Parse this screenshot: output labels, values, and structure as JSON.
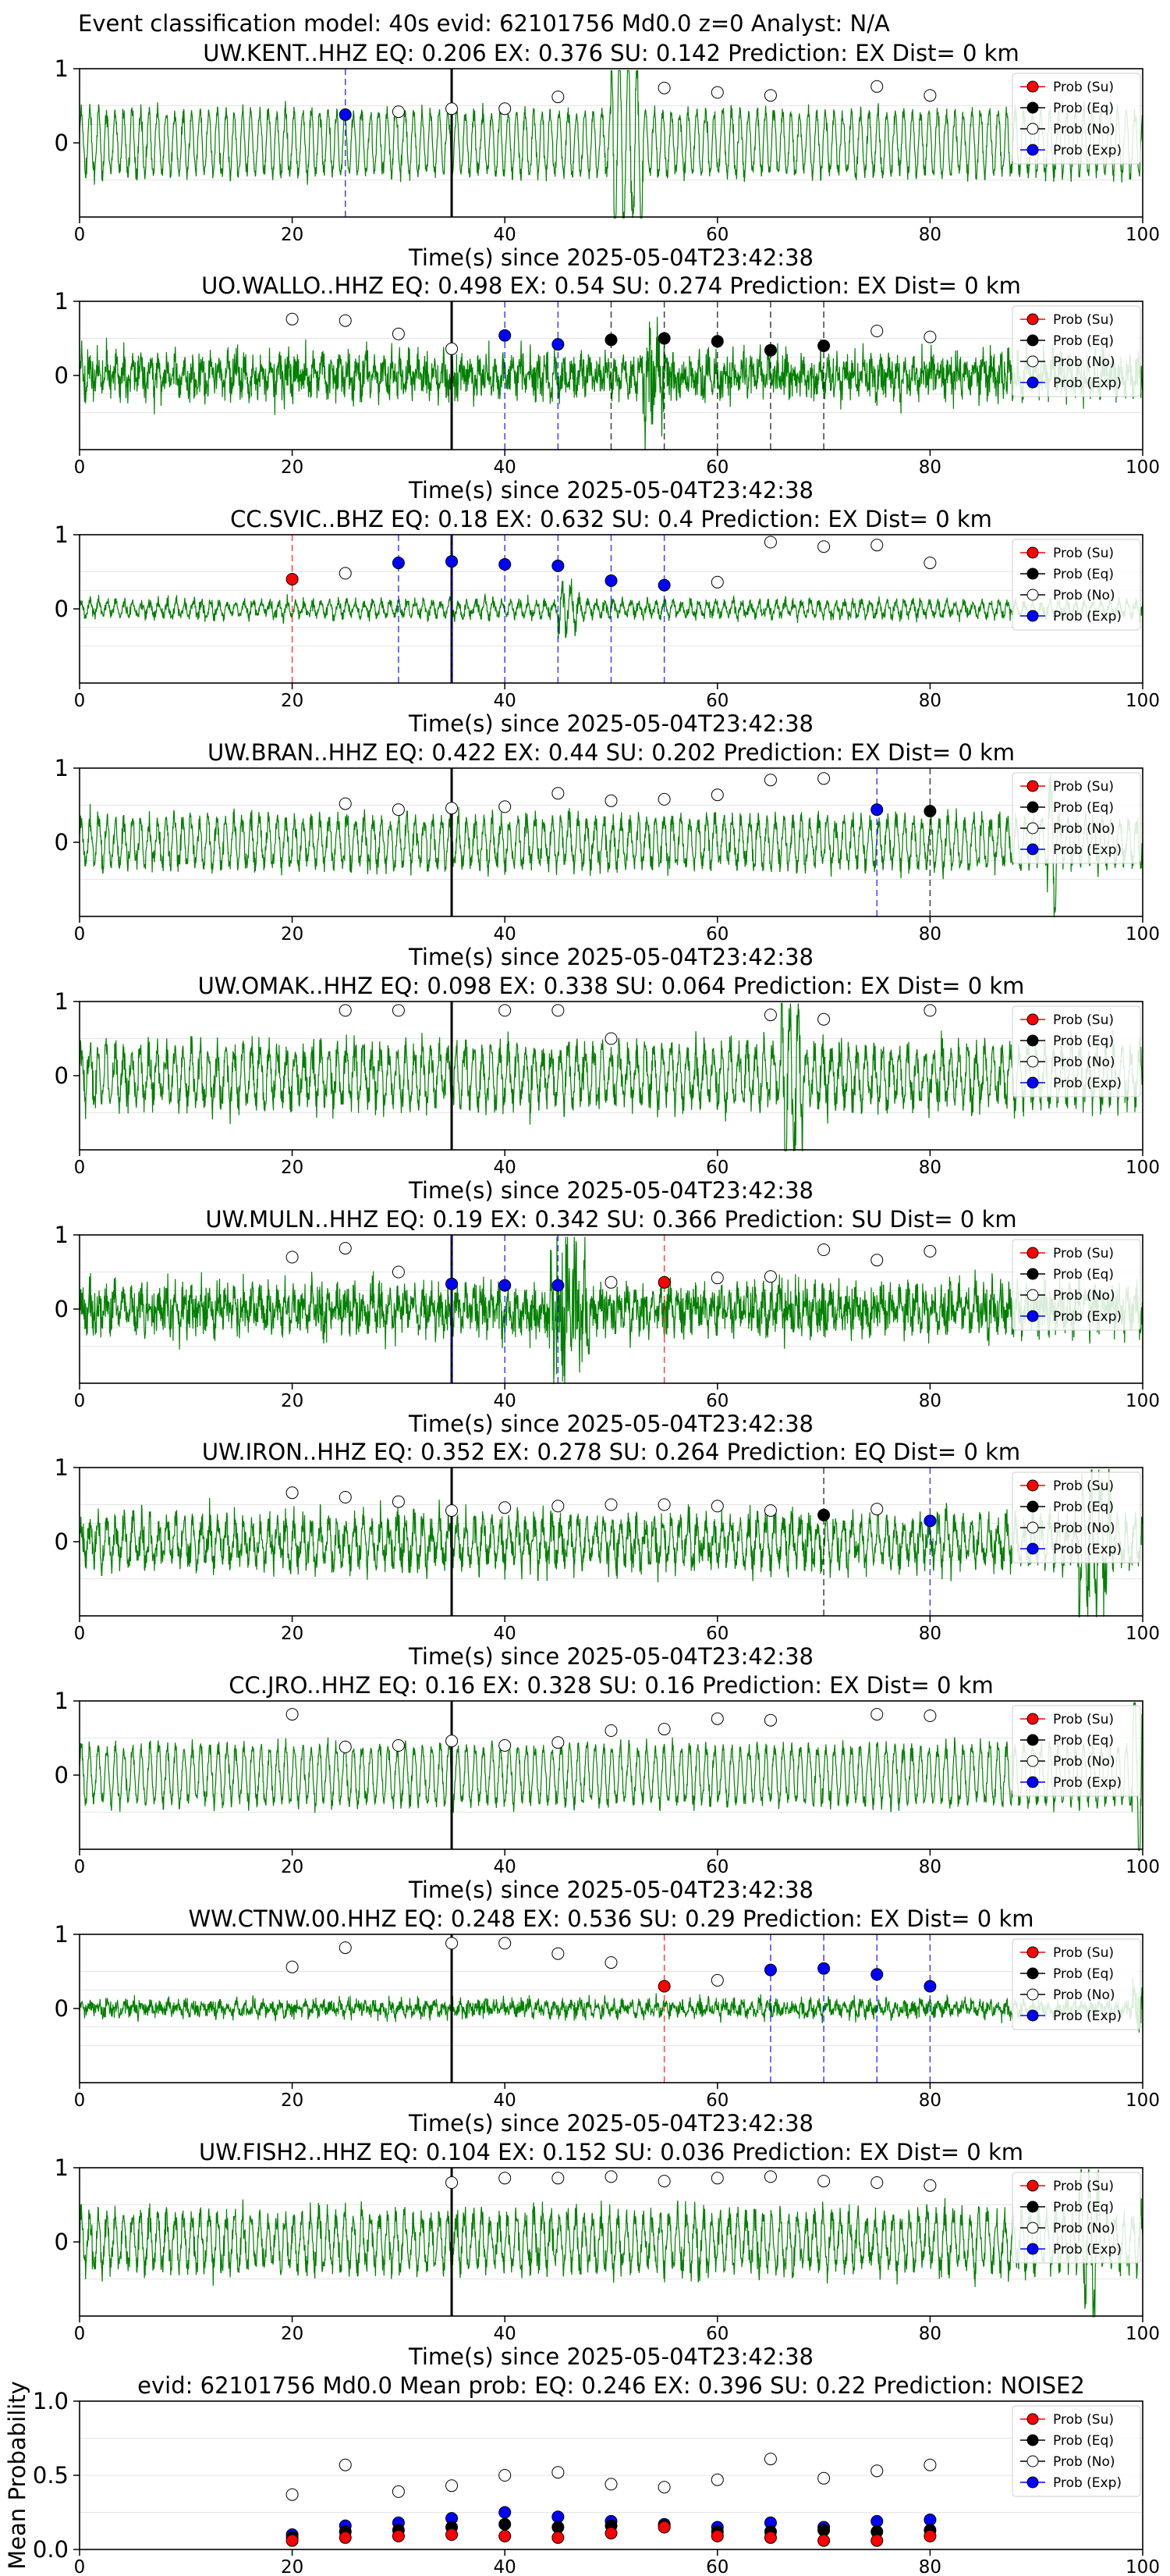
{
  "suptitle": "Event classification model: 40s evid: 62101756 Md0.0 z=0 Analyst: N/A",
  "xlabel": "Time(s) since 2025-05-04T23:42:38",
  "legend": [
    "Prob (Su)",
    "Prob (Eq)",
    "Prob (No)",
    "Prob (Exp)"
  ],
  "colors": {
    "su": "#ff0000",
    "eq": "#000000",
    "no": "#ffffff",
    "exp": "#0000ff",
    "waveform": "#008000",
    "onset": "#000000"
  },
  "chart_data": [
    {
      "type": "line",
      "title": "UW.KENT..HHZ   EQ: 0.206  EX: 0.376  SU: 0.142   Prediction: EX    Dist= 0 km",
      "xlim": [
        0,
        100
      ],
      "xticks": [
        0,
        20,
        40,
        60,
        80,
        100
      ],
      "ylim": [
        -1,
        1
      ],
      "yticks": [
        1,
        0
      ],
      "onset": 35,
      "points": [
        {
          "t": 20,
          "p": null
        },
        {
          "t": 25,
          "p": 0.38,
          "c": "exp"
        },
        {
          "t": 30,
          "p": 0.42,
          "c": "no"
        },
        {
          "t": 35,
          "p": 0.46,
          "c": "no"
        },
        {
          "t": 40,
          "p": 0.46,
          "c": "no"
        },
        {
          "t": 45,
          "p": 0.62,
          "c": "no"
        },
        {
          "t": 50,
          "p": null
        },
        {
          "t": 55,
          "p": 0.74,
          "c": "no"
        },
        {
          "t": 60,
          "p": 0.68,
          "c": "no"
        },
        {
          "t": 65,
          "p": 0.64,
          "c": "no"
        },
        {
          "t": 70,
          "p": null
        },
        {
          "t": 75,
          "p": 0.76,
          "c": "no"
        },
        {
          "t": 80,
          "p": 0.64,
          "c": "no"
        }
      ],
      "amp": 0.55,
      "noise": 0.15,
      "burst": [
        50,
        53
      ]
    },
    {
      "type": "line",
      "title": "UO.WALLO..HHZ   EQ: 0.498  EX: 0.54  SU: 0.274   Prediction: EX    Dist= 0 km",
      "xlim": [
        0,
        100
      ],
      "xticks": [
        0,
        20,
        40,
        60,
        80,
        100
      ],
      "ylim": [
        -1,
        1
      ],
      "yticks": [
        1,
        0
      ],
      "onset": 35,
      "points": [
        {
          "t": 20,
          "p": 0.76,
          "c": "no"
        },
        {
          "t": 25,
          "p": 0.74,
          "c": "no"
        },
        {
          "t": 30,
          "p": 0.56,
          "c": "no"
        },
        {
          "t": 35,
          "p": 0.36,
          "c": "no"
        },
        {
          "t": 40,
          "p": 0.54,
          "c": "exp"
        },
        {
          "t": 45,
          "p": 0.42,
          "c": "exp"
        },
        {
          "t": 50,
          "p": 0.48,
          "c": "eq"
        },
        {
          "t": 55,
          "p": 0.5,
          "c": "eq"
        },
        {
          "t": 60,
          "p": 0.46,
          "c": "eq"
        },
        {
          "t": 65,
          "p": 0.34,
          "c": "eq"
        },
        {
          "t": 70,
          "p": 0.4,
          "c": "eq"
        },
        {
          "t": 75,
          "p": 0.6,
          "c": "no"
        },
        {
          "t": 80,
          "p": 0.52,
          "c": "no"
        }
      ],
      "amp": 0.18,
      "noise": 0.35,
      "burst": [
        53,
        55
      ]
    },
    {
      "type": "line",
      "title": "CC.SVIC..BHZ   EQ: 0.18  EX: 0.632  SU: 0.4   Prediction: EX    Dist= 0 km",
      "xlim": [
        0,
        100
      ],
      "xticks": [
        0,
        20,
        40,
        60,
        80,
        100
      ],
      "ylim": [
        -1,
        1
      ],
      "yticks": [
        1,
        0
      ],
      "onset": 35,
      "points": [
        {
          "t": 20,
          "p": 0.4,
          "c": "su"
        },
        {
          "t": 25,
          "p": 0.48,
          "c": "no"
        },
        {
          "t": 30,
          "p": 0.62,
          "c": "exp"
        },
        {
          "t": 35,
          "p": 0.64,
          "c": "exp"
        },
        {
          "t": 40,
          "p": 0.6,
          "c": "exp"
        },
        {
          "t": 45,
          "p": 0.58,
          "c": "exp"
        },
        {
          "t": 50,
          "p": 0.38,
          "c": "exp"
        },
        {
          "t": 55,
          "p": 0.32,
          "c": "exp"
        },
        {
          "t": 60,
          "p": 0.36,
          "c": "no"
        },
        {
          "t": 65,
          "p": 0.9,
          "c": "no"
        },
        {
          "t": 70,
          "p": 0.84,
          "c": "no"
        },
        {
          "t": 75,
          "p": 0.86,
          "c": "no"
        },
        {
          "t": 80,
          "p": 0.62,
          "c": "no"
        }
      ],
      "amp": 0.12,
      "noise": 0.1,
      "burst": [
        45,
        47
      ]
    },
    {
      "type": "line",
      "title": "UW.BRAN..HHZ   EQ: 0.422  EX: 0.44  SU: 0.202   Prediction: EX    Dist= 0 km",
      "xlim": [
        0,
        100
      ],
      "xticks": [
        0,
        20,
        40,
        60,
        80,
        100
      ],
      "ylim": [
        -1,
        1
      ],
      "yticks": [
        1,
        0
      ],
      "onset": 35,
      "points": [
        {
          "t": 20,
          "p": null
        },
        {
          "t": 25,
          "p": 0.52,
          "c": "no"
        },
        {
          "t": 30,
          "p": 0.44,
          "c": "no"
        },
        {
          "t": 35,
          "p": 0.46,
          "c": "no"
        },
        {
          "t": 40,
          "p": 0.48,
          "c": "no"
        },
        {
          "t": 45,
          "p": 0.66,
          "c": "no"
        },
        {
          "t": 50,
          "p": 0.56,
          "c": "no"
        },
        {
          "t": 55,
          "p": 0.58,
          "c": "no"
        },
        {
          "t": 60,
          "p": 0.64,
          "c": "no"
        },
        {
          "t": 65,
          "p": 0.84,
          "c": "no"
        },
        {
          "t": 70,
          "p": 0.86,
          "c": "no"
        },
        {
          "t": 75,
          "p": 0.44,
          "c": "exp"
        },
        {
          "t": 80,
          "p": 0.42,
          "c": "eq"
        }
      ],
      "amp": 0.4,
      "noise": 0.2,
      "burst": [
        91,
        92
      ]
    },
    {
      "type": "line",
      "title": "UW.OMAK..HHZ   EQ: 0.098  EX: 0.338  SU: 0.064   Prediction: EX    Dist= 0 km",
      "xlim": [
        0,
        100
      ],
      "xticks": [
        0,
        20,
        40,
        60,
        80,
        100
      ],
      "ylim": [
        -1,
        1
      ],
      "yticks": [
        1,
        0
      ],
      "onset": 35,
      "points": [
        {
          "t": 20,
          "p": null
        },
        {
          "t": 25,
          "p": 0.88,
          "c": "no"
        },
        {
          "t": 30,
          "p": 0.88,
          "c": "no"
        },
        {
          "t": 35,
          "p": null
        },
        {
          "t": 40,
          "p": 0.88,
          "c": "no"
        },
        {
          "t": 45,
          "p": 0.88,
          "c": "no"
        },
        {
          "t": 50,
          "p": 0.5,
          "c": "no"
        },
        {
          "t": 55,
          "p": null
        },
        {
          "t": 60,
          "p": null
        },
        {
          "t": 65,
          "p": 0.82,
          "c": "no"
        },
        {
          "t": 70,
          "p": 0.76,
          "c": "no"
        },
        {
          "t": 75,
          "p": null
        },
        {
          "t": 80,
          "p": 0.88,
          "c": "no"
        }
      ],
      "amp": 0.45,
      "noise": 0.3,
      "burst": [
        66,
        68
      ]
    },
    {
      "type": "line",
      "title": "UW.MULN..HHZ   EQ: 0.19  EX: 0.342  SU: 0.366   Prediction: SU    Dist= 0 km",
      "xlim": [
        0,
        100
      ],
      "xticks": [
        0,
        20,
        40,
        60,
        80,
        100
      ],
      "ylim": [
        -1,
        1
      ],
      "yticks": [
        1,
        0
      ],
      "onset": 35,
      "points": [
        {
          "t": 20,
          "p": 0.7,
          "c": "no"
        },
        {
          "t": 25,
          "p": 0.82,
          "c": "no"
        },
        {
          "t": 30,
          "p": 0.5,
          "c": "no"
        },
        {
          "t": 35,
          "p": 0.34,
          "c": "exp"
        },
        {
          "t": 40,
          "p": 0.32,
          "c": "exp"
        },
        {
          "t": 45,
          "p": 0.32,
          "c": "exp"
        },
        {
          "t": 50,
          "p": 0.36,
          "c": "no"
        },
        {
          "t": 55,
          "p": 0.36,
          "c": "su"
        },
        {
          "t": 60,
          "p": 0.42,
          "c": "no"
        },
        {
          "t": 65,
          "p": 0.44,
          "c": "no"
        },
        {
          "t": 70,
          "p": 0.8,
          "c": "no"
        },
        {
          "t": 75,
          "p": 0.66,
          "c": "no"
        },
        {
          "t": 80,
          "p": 0.78,
          "c": "no"
        }
      ],
      "amp": 0.2,
      "noise": 0.4,
      "burst": [
        44,
        48
      ]
    },
    {
      "type": "line",
      "title": "UW.IRON..HHZ   EQ: 0.352  EX: 0.278  SU: 0.264   Prediction: EQ    Dist= 0 km",
      "xlim": [
        0,
        100
      ],
      "xticks": [
        0,
        20,
        40,
        60,
        80,
        100
      ],
      "ylim": [
        -1,
        1
      ],
      "yticks": [
        1,
        0
      ],
      "onset": 35,
      "points": [
        {
          "t": 20,
          "p": 0.66,
          "c": "no"
        },
        {
          "t": 25,
          "p": 0.6,
          "c": "no"
        },
        {
          "t": 30,
          "p": 0.54,
          "c": "no"
        },
        {
          "t": 35,
          "p": 0.42,
          "c": "no"
        },
        {
          "t": 40,
          "p": 0.46,
          "c": "no"
        },
        {
          "t": 45,
          "p": 0.48,
          "c": "no"
        },
        {
          "t": 50,
          "p": 0.5,
          "c": "no"
        },
        {
          "t": 55,
          "p": 0.5,
          "c": "no"
        },
        {
          "t": 60,
          "p": 0.48,
          "c": "no"
        },
        {
          "t": 65,
          "p": 0.42,
          "c": "no"
        },
        {
          "t": 70,
          "p": 0.36,
          "c": "eq"
        },
        {
          "t": 75,
          "p": 0.44,
          "c": "no"
        },
        {
          "t": 80,
          "p": 0.28,
          "c": "exp"
        }
      ],
      "amp": 0.35,
      "noise": 0.3,
      "burst": [
        94,
        97
      ]
    },
    {
      "type": "line",
      "title": "CC.JRO..HHZ   EQ: 0.16  EX: 0.328  SU: 0.16   Prediction: EX    Dist= 0 km",
      "xlim": [
        0,
        100
      ],
      "xticks": [
        0,
        20,
        40,
        60,
        80,
        100
      ],
      "ylim": [
        -1,
        1
      ],
      "yticks": [
        1,
        0
      ],
      "onset": 35,
      "points": [
        {
          "t": 20,
          "p": 0.82,
          "c": "no"
        },
        {
          "t": 25,
          "p": 0.38,
          "c": "no"
        },
        {
          "t": 30,
          "p": 0.4,
          "c": "no"
        },
        {
          "t": 35,
          "p": 0.46,
          "c": "no"
        },
        {
          "t": 40,
          "p": 0.4,
          "c": "no"
        },
        {
          "t": 45,
          "p": 0.44,
          "c": "no"
        },
        {
          "t": 50,
          "p": 0.6,
          "c": "no"
        },
        {
          "t": 55,
          "p": 0.62,
          "c": "no"
        },
        {
          "t": 60,
          "p": 0.76,
          "c": "no"
        },
        {
          "t": 65,
          "p": 0.74,
          "c": "no"
        },
        {
          "t": 70,
          "p": null
        },
        {
          "t": 75,
          "p": 0.82,
          "c": "no"
        },
        {
          "t": 80,
          "p": 0.8,
          "c": "no"
        }
      ],
      "amp": 0.5,
      "noise": 0.15,
      "burst": [
        99,
        100
      ]
    },
    {
      "type": "line",
      "title": "WW.CTNW.00.HHZ   EQ: 0.248  EX: 0.536  SU: 0.29    Prediction: EX     Dist= 0 km",
      "xlim": [
        0,
        100
      ],
      "xticks": [
        0,
        20,
        40,
        60,
        80,
        100
      ],
      "ylim": [
        -1,
        1
      ],
      "yticks": [
        1,
        0
      ],
      "onset": 35,
      "points": [
        {
          "t": 20,
          "p": 0.56,
          "c": "no"
        },
        {
          "t": 25,
          "p": 0.82,
          "c": "no"
        },
        {
          "t": 30,
          "p": null
        },
        {
          "t": 35,
          "p": 0.88,
          "c": "no"
        },
        {
          "t": 40,
          "p": 0.88,
          "c": "no"
        },
        {
          "t": 45,
          "p": 0.74,
          "c": "no"
        },
        {
          "t": 50,
          "p": 0.62,
          "c": "no"
        },
        {
          "t": 55,
          "p": 0.3,
          "c": "su"
        },
        {
          "t": 60,
          "p": 0.38,
          "c": "no"
        },
        {
          "t": 65,
          "p": 0.52,
          "c": "exp"
        },
        {
          "t": 70,
          "p": 0.54,
          "c": "exp"
        },
        {
          "t": 75,
          "p": 0.46,
          "c": "exp"
        },
        {
          "t": 80,
          "p": 0.3,
          "c": "exp"
        }
      ],
      "amp": 0.08,
      "noise": 0.14,
      "burst": [
        99,
        100
      ]
    },
    {
      "type": "line",
      "title": "UW.FISH2..HHZ   EQ: 0.104  EX: 0.152  SU: 0.036   Prediction: EX    Dist= 0 km",
      "xlim": [
        0,
        100
      ],
      "xticks": [
        0,
        20,
        40,
        60,
        80,
        100
      ],
      "ylim": [
        -1,
        1
      ],
      "yticks": [
        1,
        0
      ],
      "onset": 35,
      "points": [
        {
          "t": 20,
          "p": null
        },
        {
          "t": 25,
          "p": null
        },
        {
          "t": 30,
          "p": null
        },
        {
          "t": 35,
          "p": 0.8,
          "c": "no"
        },
        {
          "t": 40,
          "p": 0.86,
          "c": "no"
        },
        {
          "t": 45,
          "p": 0.86,
          "c": "no"
        },
        {
          "t": 50,
          "p": 0.88,
          "c": "no"
        },
        {
          "t": 55,
          "p": 0.82,
          "c": "no"
        },
        {
          "t": 60,
          "p": 0.86,
          "c": "no"
        },
        {
          "t": 65,
          "p": 0.88,
          "c": "no"
        },
        {
          "t": 70,
          "p": 0.82,
          "c": "no"
        },
        {
          "t": 75,
          "p": 0.8,
          "c": "no"
        },
        {
          "t": 80,
          "p": 0.76,
          "c": "no"
        }
      ],
      "amp": 0.45,
      "noise": 0.25,
      "burst": [
        94,
        96
      ]
    },
    {
      "type": "scatter",
      "title": "evid: 62101756  Md0.0   Mean prob:   EQ: 0.246  EX: 0.396  SU: 0.22   Prediction: NOISE2",
      "ylabel": "Mean Probability",
      "xlim": [
        0,
        100
      ],
      "xticks": [
        0,
        20,
        40,
        60,
        80,
        100
      ],
      "ylim": [
        0,
        1
      ],
      "yticks": [
        0.0,
        0.5,
        1.0
      ],
      "ytick_labels": [
        "0.0",
        "0.5",
        "1.0"
      ],
      "x": [
        20,
        25,
        30,
        35,
        40,
        45,
        50,
        55,
        60,
        65,
        70,
        75,
        80
      ],
      "series": [
        {
          "key": "no",
          "values": [
            0.37,
            0.57,
            0.39,
            0.43,
            0.5,
            0.52,
            0.44,
            0.42,
            0.47,
            0.61,
            0.48,
            0.53,
            0.57
          ]
        },
        {
          "key": "exp",
          "values": [
            0.1,
            0.16,
            0.18,
            0.21,
            0.25,
            0.22,
            0.19,
            0.17,
            0.15,
            0.18,
            0.15,
            0.19,
            0.2
          ]
        },
        {
          "key": "eq",
          "values": [
            0.08,
            0.12,
            0.13,
            0.15,
            0.17,
            0.15,
            0.16,
            0.16,
            0.12,
            0.12,
            0.13,
            0.12,
            0.13
          ]
        },
        {
          "key": "su",
          "values": [
            0.06,
            0.08,
            0.09,
            0.1,
            0.09,
            0.08,
            0.11,
            0.15,
            0.09,
            0.08,
            0.06,
            0.06,
            0.09
          ]
        }
      ]
    }
  ]
}
